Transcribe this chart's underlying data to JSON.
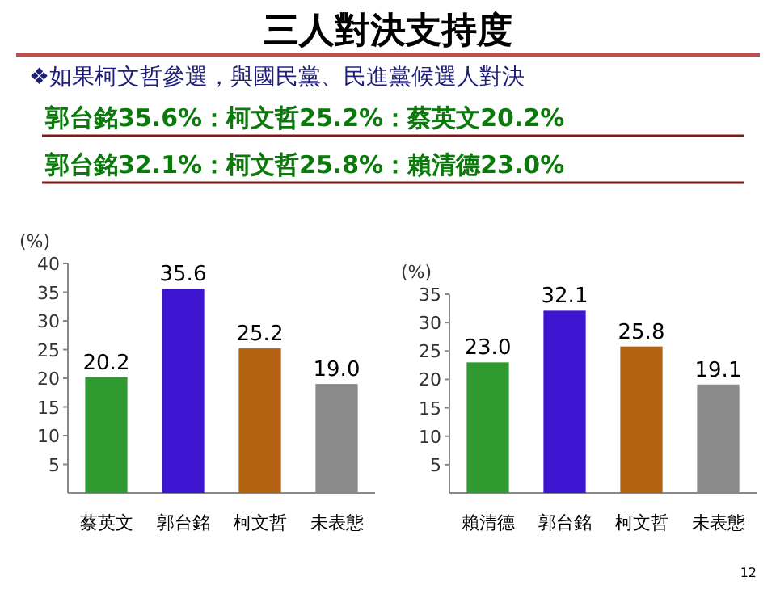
{
  "chart_data": [
    {
      "type": "bar",
      "title": "三人對決支持度",
      "subtitle": "❖如果柯文哲參選，與國民黨、民進黨候選人對決",
      "annotations": [
        "郭台銘35.6%：柯文哲25.2%：蔡英文20.2%",
        "郭台銘32.1%：柯文哲25.8%：賴清德23.0%",
        "12"
      ],
      "ylabel": "(%)",
      "categories": [
        "蔡英文",
        "郭台銘",
        "柯文哲",
        "未表態"
      ],
      "values": [
        20.2,
        35.6,
        25.2,
        19.0
      ],
      "value_labels": [
        "20.2",
        "35.6",
        "25.2",
        "19.0"
      ],
      "colors": [
        "#2f9a2f",
        "#3d14d0",
        "#b3620f",
        "#8a8a8a"
      ],
      "ylim": [
        0,
        40
      ],
      "yticks": [
        5,
        10,
        15,
        20,
        25,
        30,
        35,
        40
      ]
    },
    {
      "type": "bar",
      "ylabel": "(%)",
      "categories": [
        "賴清德",
        "郭台銘",
        "柯文哲",
        "未表態"
      ],
      "values": [
        23.0,
        32.1,
        25.8,
        19.1
      ],
      "value_labels": [
        "23.0",
        "32.1",
        "25.8",
        "19.1"
      ],
      "colors": [
        "#2f9a2f",
        "#3d14d0",
        "#b3620f",
        "#8a8a8a"
      ],
      "ylim": [
        0,
        35
      ],
      "yticks": [
        5,
        10,
        15,
        20,
        25,
        30,
        35
      ]
    }
  ]
}
